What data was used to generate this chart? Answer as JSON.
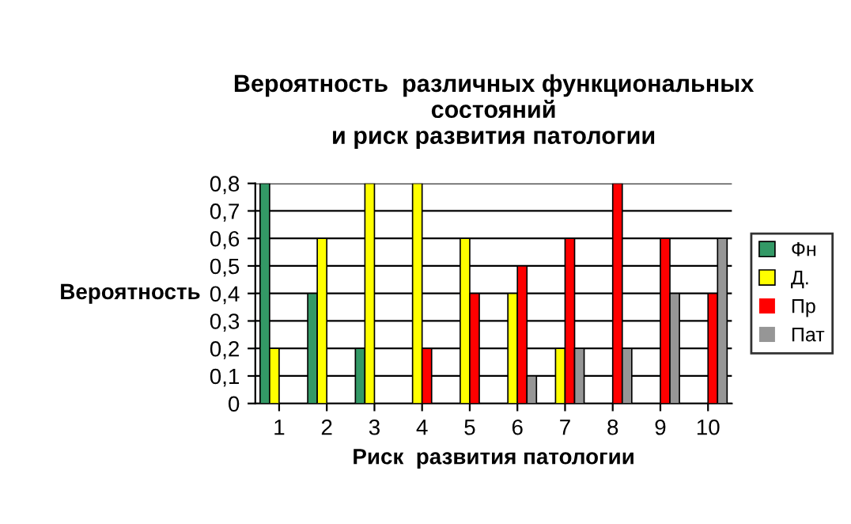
{
  "chart_data": {
    "type": "bar",
    "title": "Вероятность  различных функциональных\nсостояний\nи риск развития патологии",
    "xlabel": "Риск  развития патологии",
    "ylabel": "Вероятность",
    "categories": [
      "1",
      "2",
      "3",
      "4",
      "5",
      "6",
      "7",
      "8",
      "9",
      "10"
    ],
    "series": [
      {
        "name": "Фн",
        "color": "#339966",
        "values": [
          0.8,
          0.4,
          0.2,
          0,
          0,
          0,
          0,
          0,
          0,
          0
        ]
      },
      {
        "name": "Д.",
        "color": "#ffff00",
        "values": [
          0.2,
          0.6,
          0.8,
          0.8,
          0.6,
          0.4,
          0.2,
          0,
          0,
          0
        ]
      },
      {
        "name": "Пр",
        "color": "#ff0000",
        "values": [
          0,
          0,
          0,
          0.2,
          0.4,
          0.5,
          0.6,
          0.8,
          0.6,
          0.4
        ]
      },
      {
        "name": "Пат",
        "color": "#969696",
        "values": [
          0,
          0,
          0,
          0,
          0,
          0.1,
          0.2,
          0.2,
          0.4,
          0.6
        ]
      }
    ],
    "ylim": [
      0,
      0.8
    ],
    "yticks": [
      {
        "value": 0,
        "label": "0"
      },
      {
        "value": 0.1,
        "label": "0,1"
      },
      {
        "value": 0.2,
        "label": "0,2"
      },
      {
        "value": 0.3,
        "label": "0,3"
      },
      {
        "value": 0.4,
        "label": "0,4"
      },
      {
        "value": 0.5,
        "label": "0,5"
      },
      {
        "value": 0.6,
        "label": "0,6"
      },
      {
        "value": 0.7,
        "label": "0,7"
      },
      {
        "value": 0.8,
        "label": "0,8"
      }
    ],
    "grid": "y",
    "legend": "right"
  }
}
